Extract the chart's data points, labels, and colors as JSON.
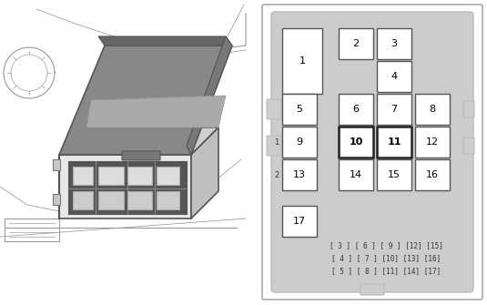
{
  "bg_color": "#ffffff",
  "panel_bg": "#cccccc",
  "box_color": "#ffffff",
  "box_border": "#555555",
  "text_color": "#000000",
  "fuse_boxes": [
    {
      "id": "1",
      "col": 0,
      "row": 0,
      "cspan": 1,
      "rspan": 2,
      "bold": false,
      "large": true
    },
    {
      "id": "2",
      "col": 2,
      "row": 0,
      "cspan": 1,
      "rspan": 1,
      "bold": false,
      "large": false
    },
    {
      "id": "3",
      "col": 3,
      "row": 0,
      "cspan": 1,
      "rspan": 1,
      "bold": false,
      "large": false
    },
    {
      "id": "4",
      "col": 3,
      "row": 1,
      "cspan": 1,
      "rspan": 1,
      "bold": false,
      "large": false
    },
    {
      "id": "5",
      "col": 1,
      "row": 2,
      "cspan": 1,
      "rspan": 1,
      "bold": false,
      "large": false
    },
    {
      "id": "6",
      "col": 2,
      "row": 2,
      "cspan": 1,
      "rspan": 1,
      "bold": false,
      "large": false
    },
    {
      "id": "7",
      "col": 3,
      "row": 2,
      "cspan": 1,
      "rspan": 1,
      "bold": false,
      "large": false
    },
    {
      "id": "8",
      "col": 4,
      "row": 2,
      "cspan": 1,
      "rspan": 1,
      "bold": false,
      "large": false
    },
    {
      "id": "9",
      "col": 1,
      "row": 3,
      "cspan": 1,
      "rspan": 1,
      "bold": false,
      "large": false
    },
    {
      "id": "10",
      "col": 2,
      "row": 3,
      "cspan": 1,
      "rspan": 1,
      "bold": true,
      "large": false
    },
    {
      "id": "11",
      "col": 3,
      "row": 3,
      "cspan": 1,
      "rspan": 1,
      "bold": true,
      "large": false
    },
    {
      "id": "12",
      "col": 4,
      "row": 3,
      "cspan": 1,
      "rspan": 1,
      "bold": false,
      "large": false
    },
    {
      "id": "13",
      "col": 1,
      "row": 4,
      "cspan": 1,
      "rspan": 1,
      "bold": false,
      "large": false
    },
    {
      "id": "14",
      "col": 2,
      "row": 4,
      "cspan": 1,
      "rspan": 1,
      "bold": false,
      "large": false
    },
    {
      "id": "15",
      "col": 3,
      "row": 4,
      "cspan": 1,
      "rspan": 1,
      "bold": false,
      "large": false
    },
    {
      "id": "16",
      "col": 4,
      "row": 4,
      "cspan": 1,
      "rspan": 1,
      "bold": false,
      "large": false
    },
    {
      "id": "17",
      "col": 0,
      "row": 5,
      "cspan": 1,
      "rspan": 1,
      "bold": false,
      "large": false
    }
  ],
  "bottom_rows": [
    "[ 3 ] [ 6 ] [ 9 ] [12] [15]",
    "[ 4 ] [ 7 ] [10] [13] [16]",
    "[ 5 ] [ 8 ] [11] [14] [17]"
  ],
  "side_labels": [
    {
      "text": "1",
      "row": 3
    },
    {
      "text": "2",
      "row": 4
    }
  ],
  "sketch_color": "#999999",
  "sketch_dark": "#555555",
  "sketch_mid": "#777777"
}
